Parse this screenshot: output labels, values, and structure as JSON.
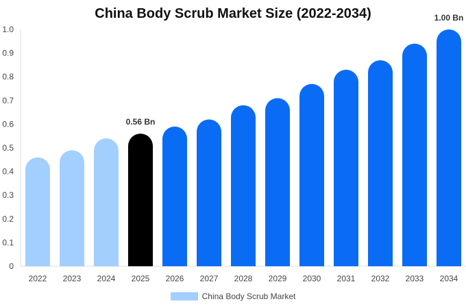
{
  "chart_data": {
    "type": "bar",
    "title": "China Body Scrub Market Size (2022-2034)",
    "xlabel": "",
    "ylabel": "",
    "categories": [
      "2022",
      "2023",
      "2024",
      "2025",
      "2026",
      "2027",
      "2028",
      "2029",
      "2030",
      "2031",
      "2032",
      "2033",
      "2034"
    ],
    "series": [
      {
        "name": "China Body Scrub Market",
        "values": [
          0.46,
          0.49,
          0.54,
          0.56,
          0.59,
          0.62,
          0.68,
          0.71,
          0.77,
          0.83,
          0.87,
          0.94,
          1.0
        ]
      }
    ],
    "ylim": [
      0,
      1.0
    ],
    "yticks": [
      "0",
      "0.1",
      "0.2",
      "0.3",
      "0.4",
      "0.5",
      "0.6",
      "0.7",
      "0.8",
      "0.9",
      "1.0"
    ],
    "data_labels": [
      {
        "category": "2025",
        "text": "0.56 Bn"
      },
      {
        "category": "2034",
        "text": "1.00 Bn"
      }
    ],
    "grid": false,
    "legend_position": "bottom",
    "colors": {
      "historical": "#a3cfff",
      "current": "#000000",
      "forecast": "#0a6cf5",
      "legend": "#a3cfff"
    },
    "highlight_category": "2025"
  }
}
